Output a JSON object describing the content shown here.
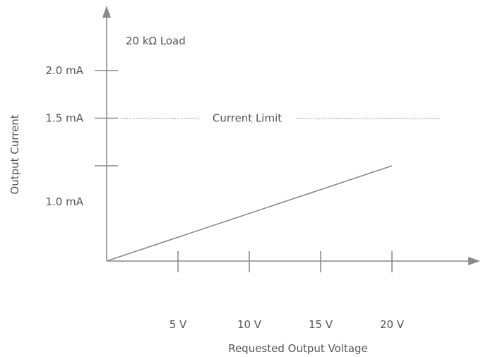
{
  "chart_data": {
    "type": "line",
    "annotation": "20 kΩ Load",
    "xlabel": "Requested Output Voltage",
    "ylabel": "Output Current",
    "x_ticks": [
      {
        "value": 5,
        "label": "5 V"
      },
      {
        "value": 10,
        "label": "10 V"
      },
      {
        "value": 15,
        "label": "15 V"
      },
      {
        "value": 20,
        "label": "20 V"
      }
    ],
    "y_ticks": [
      {
        "value": 1.0,
        "label": "1.0 mA"
      },
      {
        "value": 1.5,
        "label": "1.5 mA"
      },
      {
        "value": 2.0,
        "label": "2.0 mA"
      }
    ],
    "current_limit": {
      "value": 1.5,
      "label": "Current Limit"
    },
    "series": [
      {
        "x": [
          0,
          20
        ],
        "y": [
          0,
          1.0
        ]
      }
    ],
    "xlim": [
      0,
      25.7
    ],
    "ylim": [
      0,
      2.7
    ],
    "grid": false,
    "colors": {
      "axis": "#8a8a8a",
      "text": "#555555",
      "limit": "#9a9a9a"
    }
  }
}
